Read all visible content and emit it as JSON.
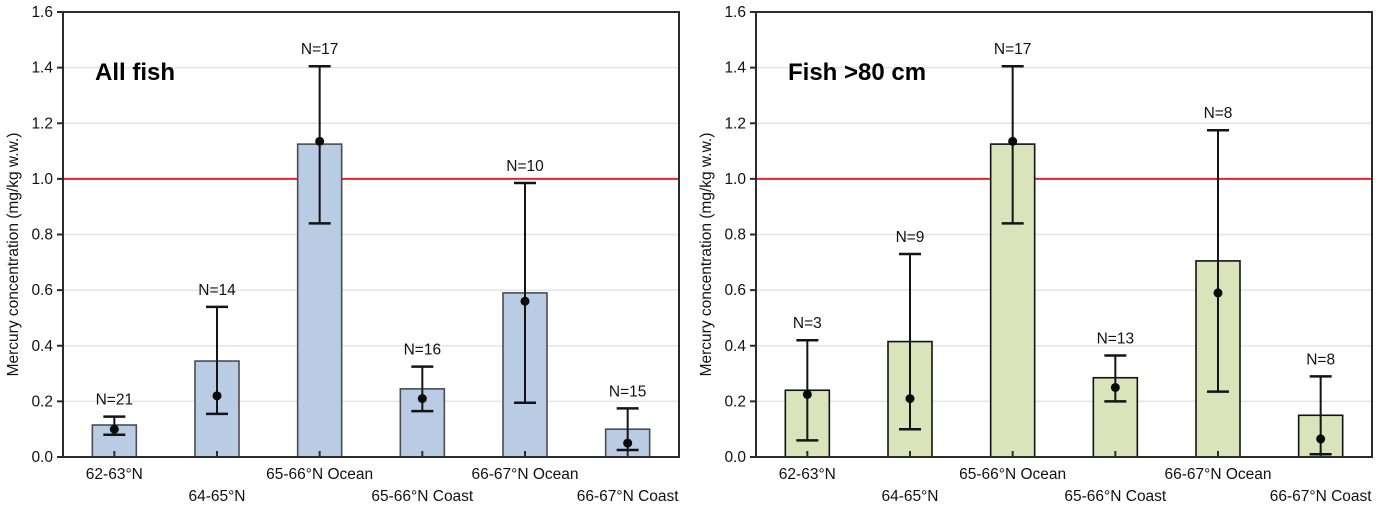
{
  "figure": {
    "background": "#ffffff",
    "panel_titles": [
      "All fish",
      "Fish >80 cm"
    ]
  },
  "chart_data": [
    {
      "type": "bar",
      "title": "All fish",
      "xlabel": "",
      "ylabel": "Mercury concentration (mg/kg w.w.)",
      "ylim": [
        0.0,
        1.6
      ],
      "ytick_step": 0.2,
      "ytick_labels": [
        "0.0",
        "0.2",
        "0.4",
        "0.6",
        "0.8",
        "1.0",
        "1.2",
        "1.4",
        "1.6"
      ],
      "grid": true,
      "legend": "none",
      "reference_line": {
        "y": 1.0,
        "color": "#e8232a"
      },
      "bar_fill": "#b9cce3",
      "bar_stroke": "#474c55",
      "categories": [
        "62-63°N",
        "64-65°N",
        "65-66°N Ocean",
        "65-66°N Coast",
        "66-67°N Ocean",
        "66-67°N Coast"
      ],
      "bar_values": [
        0.115,
        0.345,
        1.125,
        0.245,
        0.59,
        0.1
      ],
      "point_values": [
        0.1,
        0.22,
        1.135,
        0.21,
        0.56,
        0.05
      ],
      "error_low": [
        0.08,
        0.155,
        0.84,
        0.165,
        0.195,
        0.025
      ],
      "error_high": [
        0.145,
        0.54,
        1.405,
        0.325,
        0.985,
        0.175
      ],
      "n_labels": [
        "N=21",
        "N=14",
        "N=17",
        "N=16",
        "N=10",
        "N=15"
      ]
    },
    {
      "type": "bar",
      "title": "Fish >80 cm",
      "xlabel": "",
      "ylabel": "Mercury concentration (mg/kg w.w.)",
      "ylim": [
        0.0,
        1.6
      ],
      "ytick_step": 0.2,
      "ytick_labels": [
        "0.0",
        "0.2",
        "0.4",
        "0.6",
        "0.8",
        "1.0",
        "1.2",
        "1.4",
        "1.6"
      ],
      "grid": true,
      "legend": "none",
      "reference_line": {
        "y": 1.0,
        "color": "#e8232a"
      },
      "bar_fill": "#d9e4bb",
      "bar_stroke": "#121212",
      "categories": [
        "62-63°N",
        "64-65°N",
        "65-66°N Ocean",
        "65-66°N Coast",
        "66-67°N Ocean",
        "66-67°N Coast"
      ],
      "bar_values": [
        0.24,
        0.415,
        1.125,
        0.285,
        0.705,
        0.15
      ],
      "point_values": [
        0.225,
        0.21,
        1.135,
        0.25,
        0.59,
        0.065
      ],
      "error_low": [
        0.06,
        0.1,
        0.84,
        0.2,
        0.235,
        0.01
      ],
      "error_high": [
        0.42,
        0.73,
        1.405,
        0.365,
        1.175,
        0.29
      ],
      "n_labels": [
        "N=3",
        "N=9",
        "N=17",
        "N=13",
        "N=8",
        "N=8"
      ]
    }
  ]
}
